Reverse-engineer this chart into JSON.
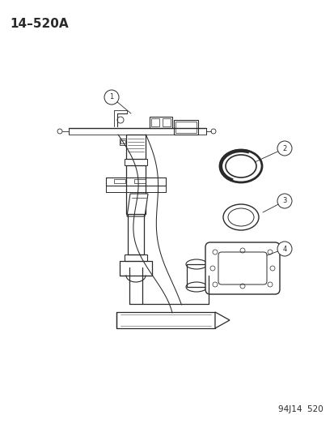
{
  "title": "14–520A",
  "footer": "94J14  520",
  "bg_color": "#ffffff",
  "line_color": "#2a2a2a",
  "label_color": "#1a1a1a",
  "title_fontsize": 11,
  "footer_fontsize": 7.5
}
